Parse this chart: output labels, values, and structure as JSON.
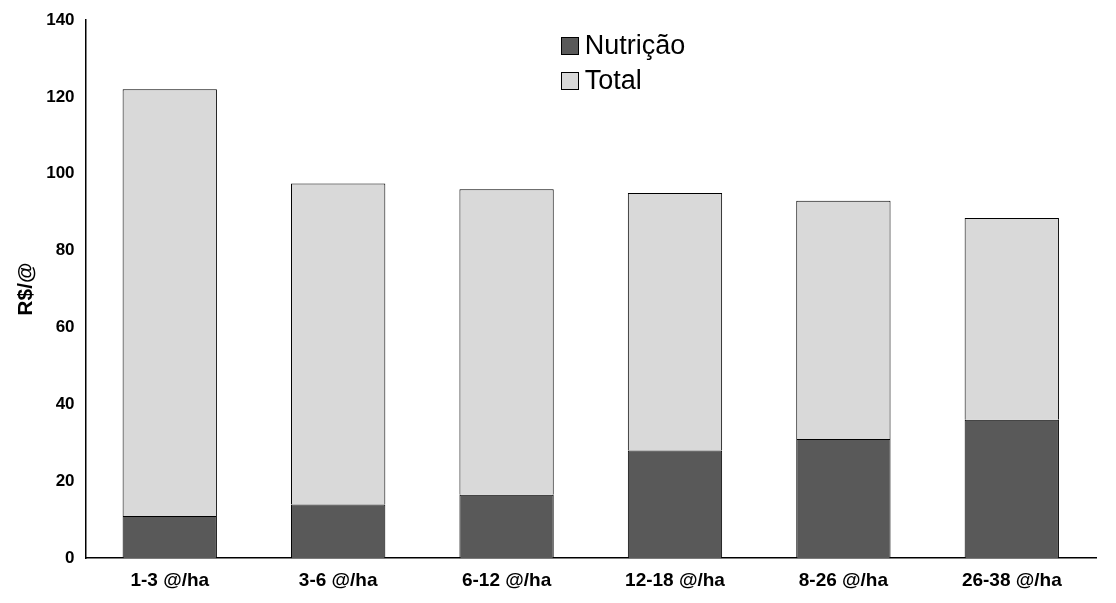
{
  "chart_data": {
    "type": "bar",
    "stacked": true,
    "ylabel": "R$/@",
    "categories": [
      "1-3 @/ha",
      "3-6 @/ha",
      "6-12 @/ha",
      "12-18 @/ha",
      "8-26 @/ha",
      "26-38 @/ha"
    ],
    "series": [
      {
        "name": "Nutrição",
        "color": "#595959",
        "values": [
          11,
          14,
          16.5,
          28,
          31,
          36
        ]
      },
      {
        "name": "Total",
        "color": "#d9d9d9",
        "values": [
          111,
          83.5,
          79.5,
          67,
          62,
          52.5
        ]
      }
    ],
    "ylim": [
      0,
      140
    ],
    "yticks": [
      0,
      20,
      40,
      60,
      80,
      100,
      120,
      140
    ],
    "grid": false,
    "legend": "top"
  }
}
